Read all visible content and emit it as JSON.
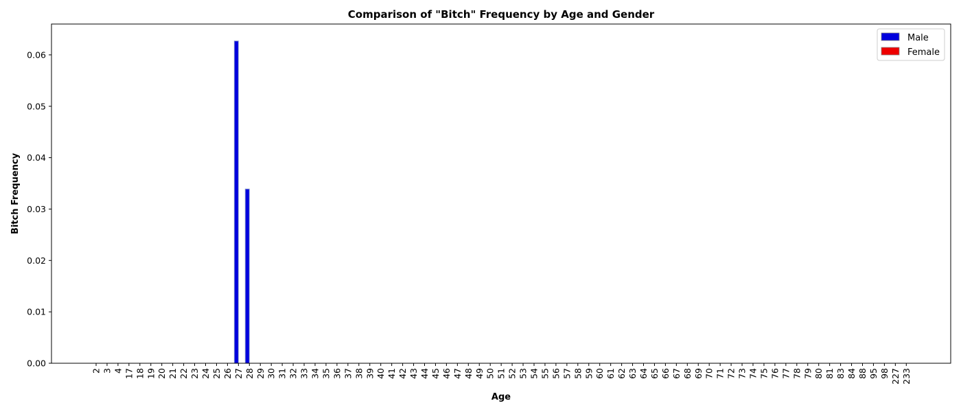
{
  "chart_data": {
    "type": "bar",
    "title": "Comparison of \"Bitch\" Frequency by Age and Gender",
    "xlabel": "Age",
    "ylabel": "Bitch Frequency",
    "categories": [
      "2",
      "3",
      "4",
      "17",
      "18",
      "19",
      "20",
      "21",
      "22",
      "23",
      "24",
      "25",
      "26",
      "27",
      "28",
      "29",
      "30",
      "31",
      "32",
      "33",
      "34",
      "35",
      "36",
      "37",
      "38",
      "39",
      "40",
      "41",
      "42",
      "43",
      "44",
      "45",
      "46",
      "47",
      "48",
      "49",
      "50",
      "51",
      "52",
      "53",
      "54",
      "55",
      "56",
      "57",
      "58",
      "59",
      "60",
      "61",
      "62",
      "63",
      "64",
      "65",
      "66",
      "67",
      "68",
      "69",
      "70",
      "71",
      "72",
      "73",
      "74",
      "75",
      "76",
      "77",
      "78",
      "79",
      "80",
      "81",
      "83",
      "84",
      "88",
      "95",
      "98",
      "227",
      "233"
    ],
    "series": [
      {
        "name": "Male",
        "color": "#0000dd",
        "values": [
          0,
          0,
          0,
          0,
          0,
          0,
          0,
          0,
          0,
          0,
          0,
          0,
          0,
          0.0627,
          0.0339,
          0,
          0,
          0,
          0,
          0,
          0,
          0,
          0,
          0,
          0,
          0,
          0,
          0,
          0,
          0,
          0,
          0,
          0,
          0,
          0,
          0,
          0,
          0,
          0,
          0,
          0,
          0,
          0,
          0,
          0,
          0,
          0,
          0,
          0,
          0,
          0,
          0,
          0,
          0,
          0,
          0,
          0,
          0,
          0,
          0,
          0,
          0,
          0,
          0,
          0,
          0,
          0,
          0,
          0,
          0,
          0,
          0,
          0,
          0,
          0
        ]
      },
      {
        "name": "Female",
        "color": "#ee0000",
        "values": [
          0,
          0,
          0,
          0,
          0,
          0,
          0,
          0,
          0,
          0,
          0,
          0,
          0,
          0,
          0,
          0,
          0,
          0,
          0,
          0,
          0,
          0,
          0,
          0,
          0,
          0,
          0,
          0,
          0,
          0,
          0,
          0,
          0,
          0,
          0,
          0,
          0,
          0,
          0,
          0,
          0,
          0,
          0,
          0,
          0,
          0,
          0,
          0,
          0,
          0,
          0,
          0,
          0,
          0,
          0,
          0,
          0,
          0,
          0,
          0,
          0,
          0,
          0,
          0,
          0,
          0,
          0,
          0,
          0,
          0,
          0,
          0,
          0,
          0,
          0
        ]
      }
    ],
    "ylim": [
      0,
      0.066
    ],
    "yticks": [
      "0.00",
      "0.01",
      "0.02",
      "0.03",
      "0.04",
      "0.05",
      "0.06"
    ],
    "grid": false,
    "legend_position": "top-right"
  }
}
